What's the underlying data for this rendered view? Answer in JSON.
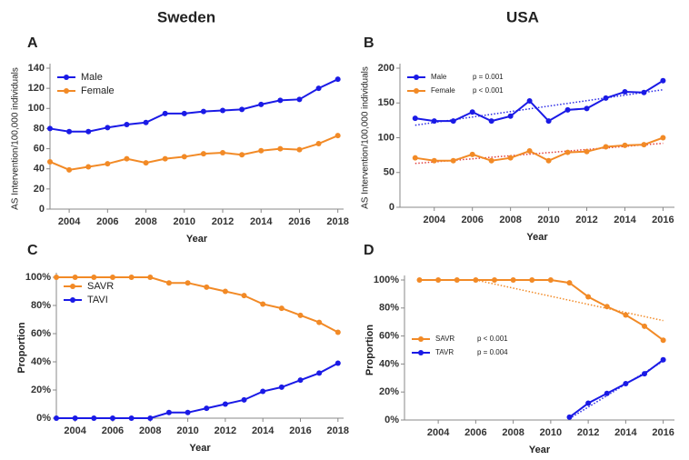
{
  "columns": [
    "Sweden",
    "USA"
  ],
  "chart_data": [
    {
      "type": "line",
      "panel": "A",
      "xlabel": "Year",
      "ylabel": "AS Intervention/100,000 individuals",
      "x": [
        2003,
        2004,
        2005,
        2006,
        2007,
        2008,
        2009,
        2010,
        2011,
        2012,
        2013,
        2014,
        2015,
        2016,
        2017,
        2018
      ],
      "xlim": [
        2003,
        2018.3
      ],
      "xticks": [
        2004,
        2006,
        2008,
        2010,
        2012,
        2014,
        2016,
        2018
      ],
      "ylim": [
        0,
        140
      ],
      "yticks": [
        0,
        20,
        40,
        60,
        80,
        100,
        120,
        140
      ],
      "legend": "upper left",
      "series": [
        {
          "name": "Male",
          "color": "#1a1ae6",
          "values": [
            80,
            77,
            77,
            81,
            84,
            86,
            95,
            95,
            97,
            98,
            99,
            104,
            108,
            109,
            120,
            129
          ]
        },
        {
          "name": "Female",
          "color": "#f28a26",
          "values": [
            47,
            39,
            42,
            45,
            50,
            46,
            50,
            52,
            55,
            56,
            54,
            58,
            60,
            59,
            65,
            73
          ]
        }
      ]
    },
    {
      "type": "line",
      "panel": "B",
      "xlabel": "Year",
      "ylabel": "AS Intervention/100,000 individuals",
      "x": [
        2003,
        2004,
        2005,
        2006,
        2007,
        2008,
        2009,
        2010,
        2011,
        2012,
        2013,
        2014,
        2015,
        2016
      ],
      "xlim": [
        2002.2,
        2016.6
      ],
      "xticks": [
        2004,
        2006,
        2008,
        2010,
        2012,
        2014,
        2016
      ],
      "ylim": [
        0,
        200
      ],
      "yticks": [
        0,
        50,
        100,
        150,
        200
      ],
      "legend": "upper left",
      "series": [
        {
          "name": "Male",
          "p": "p = 0.001",
          "color": "#1a1ae6",
          "values": [
            128,
            124,
            124,
            137,
            124,
            131,
            153,
            124,
            140,
            142,
            157,
            166,
            165,
            182
          ],
          "trend": {
            "color": "#2a2ae6",
            "x": [
              2003,
              2016
            ],
            "values": [
              118,
              169
            ]
          }
        },
        {
          "name": "Female",
          "p": "p < 0.001",
          "color": "#f28a26",
          "values": [
            71,
            67,
            67,
            76,
            67,
            71,
            81,
            67,
            79,
            80,
            87,
            89,
            90,
            100
          ],
          "trend": {
            "color": "#e04040",
            "x": [
              2003,
              2016
            ],
            "values": [
              63,
              92
            ]
          }
        }
      ]
    },
    {
      "type": "line",
      "panel": "C",
      "xlabel": "Year",
      "ylabel": "Proportion",
      "x": [
        2003,
        2004,
        2005,
        2006,
        2007,
        2008,
        2009,
        2010,
        2011,
        2012,
        2013,
        2014,
        2015,
        2016,
        2017,
        2018
      ],
      "xlim": [
        2003,
        2018.3
      ],
      "xticks": [
        2004,
        2006,
        2008,
        2010,
        2012,
        2014,
        2016,
        2018
      ],
      "ylim": [
        0,
        100
      ],
      "yticks": [
        {
          "value": 0,
          "label": "0%"
        },
        {
          "value": 20,
          "label": "20%"
        },
        {
          "value": 40,
          "label": "40%"
        },
        {
          "value": 60,
          "label": "60%"
        },
        {
          "value": 80,
          "label": "80%"
        },
        {
          "value": 100,
          "label": "100%"
        }
      ],
      "legend": "upper left",
      "series": [
        {
          "name": "SAVR",
          "color": "#f28a26",
          "values": [
            100,
            100,
            100,
            100,
            100,
            100,
            96,
            96,
            93,
            90,
            87,
            81,
            78,
            73,
            68,
            61
          ]
        },
        {
          "name": "TAVI",
          "color": "#1a1ae6",
          "values": [
            0,
            0,
            0,
            0,
            0,
            0,
            4,
            4,
            7,
            10,
            13,
            19,
            22,
            27,
            32,
            39
          ]
        }
      ]
    },
    {
      "type": "line",
      "panel": "D",
      "xlabel": "Year",
      "ylabel": "Proportion",
      "x": [
        2003,
        2004,
        2005,
        2006,
        2007,
        2008,
        2009,
        2010,
        2011,
        2012,
        2013,
        2014,
        2015,
        2016
      ],
      "xlim": [
        2002.2,
        2016.6
      ],
      "xticks": [
        2004,
        2006,
        2008,
        2010,
        2012,
        2014,
        2016
      ],
      "ylim": [
        0,
        100
      ],
      "yticks": [
        {
          "value": 0,
          "label": "0%"
        },
        {
          "value": 20,
          "label": "20%"
        },
        {
          "value": 40,
          "label": "40%"
        },
        {
          "value": 60,
          "label": "60%"
        },
        {
          "value": 80,
          "label": "80%"
        },
        {
          "value": 100,
          "label": "100%"
        }
      ],
      "legend": "center left",
      "series": [
        {
          "name": "SAVR",
          "p": "p < 0.001",
          "color": "#f28a26",
          "values": [
            100,
            100,
            100,
            100,
            100,
            100,
            100,
            100,
            98,
            88,
            81,
            75,
            67,
            57
          ],
          "trend": {
            "color": "#f28a26",
            "x": [
              2006,
              2016
            ],
            "values": [
              100,
              71
            ]
          }
        },
        {
          "name": "TAVR",
          "p": "p = 0.004",
          "color": "#1a1ae6",
          "values": [
            null,
            null,
            null,
            null,
            null,
            null,
            null,
            null,
            2,
            12,
            19,
            26,
            33,
            43
          ],
          "trend": {
            "color": "#2a2ae6",
            "x": [
              2011,
              2016
            ],
            "values": [
              1,
              42
            ]
          }
        }
      ]
    }
  ]
}
